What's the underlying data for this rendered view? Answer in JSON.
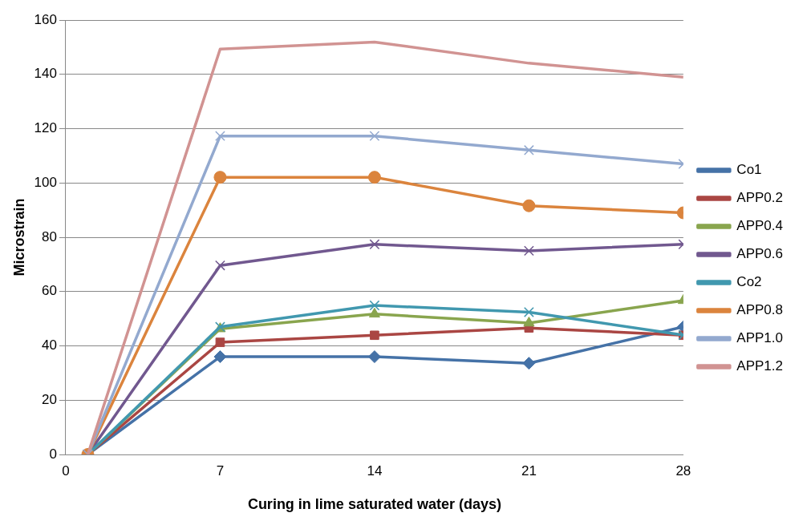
{
  "chart_data": {
    "type": "line",
    "xlabel": "Curing in lime saturated water (days)",
    "ylabel": "Microstrain",
    "x": [
      1,
      7,
      14,
      21,
      28
    ],
    "xlim": [
      0,
      28
    ],
    "xticks": [
      0,
      7,
      14,
      21,
      28
    ],
    "ylim": [
      0,
      160
    ],
    "yticks": [
      0,
      20,
      40,
      60,
      80,
      100,
      120,
      140,
      160
    ],
    "grid": "y",
    "legend": "right",
    "series": [
      {
        "name": "Co1",
        "color": "#4572a7",
        "marker": "diamond",
        "values": [
          0,
          36,
          36,
          33.6,
          47
        ]
      },
      {
        "name": "APP0.2",
        "color": "#aa4643",
        "marker": "square",
        "values": [
          0,
          41.3,
          43.9,
          46.6,
          43.9
        ]
      },
      {
        "name": "APP0.4",
        "color": "#89a54e",
        "marker": "triangle",
        "values": [
          0,
          46.3,
          51.7,
          48.4,
          56.7
        ]
      },
      {
        "name": "APP0.6",
        "color": "#71588f",
        "marker": "cross",
        "values": [
          0,
          69.6,
          77.4,
          75,
          77.4
        ]
      },
      {
        "name": "Co2",
        "color": "#4198af",
        "marker": "cross",
        "values": [
          0,
          47,
          54.9,
          52.4,
          44
        ]
      },
      {
        "name": "APP0.8",
        "color": "#db843d",
        "marker": "circle",
        "values": [
          0,
          102.1,
          102.1,
          91.6,
          89
        ]
      },
      {
        "name": "APP1.0",
        "color": "#93a9cf",
        "marker": "cross",
        "values": [
          0,
          117.3,
          117.3,
          112.1,
          107
        ]
      },
      {
        "name": "APP1.2",
        "color": "#d19392",
        "marker": "none",
        "values": [
          0,
          149.3,
          151.9,
          144.1,
          139
        ]
      }
    ]
  }
}
